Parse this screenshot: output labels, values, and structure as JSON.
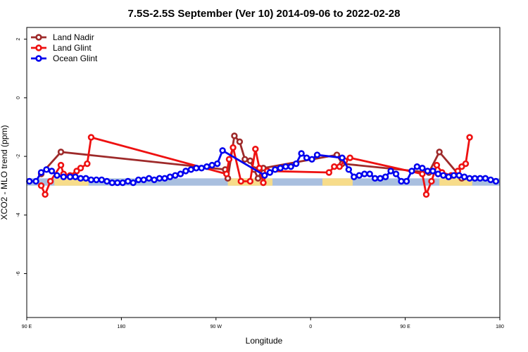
{
  "chart_data": {
    "type": "line",
    "title": "7.5S-2.5S September (Ver 10)   2014-09-06 to 2022-02-28",
    "xlabel": "Longitude",
    "ylabel": "XCO2 - MLO trend (ppm)",
    "xlim": [
      0,
      360
    ],
    "ylim": [
      -7.5,
      2.4
    ],
    "x_ticks": [
      {
        "value": 0,
        "label": "90 E"
      },
      {
        "value": 72,
        "label": "180"
      },
      {
        "value": 144,
        "label": "90 W"
      },
      {
        "value": 216,
        "label": "0"
      },
      {
        "value": 288,
        "label": "90 E"
      },
      {
        "value": 360,
        "label": "180"
      }
    ],
    "y_ticks": [
      {
        "value": 2,
        "label": "2"
      },
      {
        "value": 0,
        "label": "0"
      },
      {
        "value": -2,
        "label": "-2"
      },
      {
        "value": -4,
        "label": "-4"
      },
      {
        "value": -6,
        "label": "-6"
      }
    ],
    "legend_position": "top-left",
    "grid": false,
    "land_mask": {
      "y_range": [
        -3.0,
        -2.75
      ],
      "ocean_color": "#a9bfdf",
      "land_color": "#f7dc8a",
      "land_segments": [
        [
          21,
          47
        ],
        [
          153,
          187
        ],
        [
          225,
          248
        ],
        [
          314,
          339
        ]
      ]
    },
    "series": [
      {
        "name": "Land Nadir",
        "color": "#9e2a2a",
        "points": [
          [
            11,
            -2.6
          ],
          [
            26,
            -1.85
          ],
          [
            151,
            -2.45
          ],
          [
            153,
            -2.75
          ],
          [
            158,
            -1.3
          ],
          [
            162,
            -1.5
          ],
          [
            166,
            -2.1
          ],
          [
            170,
            -2.15
          ],
          [
            173,
            -2.45
          ],
          [
            176,
            -2.75
          ],
          [
            180,
            -2.4
          ],
          [
            236,
            -1.95
          ],
          [
            240,
            -2.25
          ],
          [
            306,
            -2.55
          ],
          [
            314,
            -1.85
          ],
          [
            331,
            -2.75
          ]
        ]
      },
      {
        "name": "Land Glint",
        "color": "#ee1111",
        "points": [
          [
            11,
            -3.0
          ],
          [
            14,
            -3.3
          ],
          [
            18,
            -2.85
          ],
          [
            26,
            -2.3
          ],
          [
            28,
            -2.6
          ],
          [
            33,
            -2.65
          ],
          [
            38,
            -2.5
          ],
          [
            41,
            -2.4
          ],
          [
            46,
            -2.25
          ],
          [
            49,
            -1.35
          ],
          [
            152,
            -2.6
          ],
          [
            154,
            -2.1
          ],
          [
            157,
            -1.7
          ],
          [
            163,
            -2.85
          ],
          [
            170,
            -2.85
          ],
          [
            174,
            -1.75
          ],
          [
            177,
            -2.4
          ],
          [
            180,
            -2.9
          ],
          [
            183,
            -2.5
          ],
          [
            230,
            -2.55
          ],
          [
            234,
            -2.35
          ],
          [
            238,
            -2.35
          ],
          [
            242,
            -2.15
          ],
          [
            246,
            -2.05
          ],
          [
            301,
            -2.6
          ],
          [
            304,
            -3.3
          ],
          [
            308,
            -2.85
          ],
          [
            312,
            -2.3
          ],
          [
            316,
            -2.55
          ],
          [
            323,
            -2.65
          ],
          [
            328,
            -2.5
          ],
          [
            331,
            -2.35
          ],
          [
            334,
            -2.25
          ],
          [
            337,
            -1.35
          ]
        ]
      },
      {
        "name": "Ocean Glint",
        "color": "#0000ee",
        "points": [
          [
            2,
            -2.85
          ],
          [
            7,
            -2.85
          ],
          [
            11,
            -2.55
          ],
          [
            15,
            -2.45
          ],
          [
            19,
            -2.5
          ],
          [
            23,
            -2.65
          ],
          [
            28,
            -2.7
          ],
          [
            33,
            -2.7
          ],
          [
            37,
            -2.7
          ],
          [
            41,
            -2.75
          ],
          [
            45,
            -2.75
          ],
          [
            49,
            -2.8
          ],
          [
            53,
            -2.8
          ],
          [
            57,
            -2.8
          ],
          [
            61,
            -2.85
          ],
          [
            65,
            -2.9
          ],
          [
            69,
            -2.9
          ],
          [
            73,
            -2.9
          ],
          [
            77,
            -2.85
          ],
          [
            81,
            -2.9
          ],
          [
            85,
            -2.8
          ],
          [
            89,
            -2.8
          ],
          [
            93,
            -2.75
          ],
          [
            97,
            -2.8
          ],
          [
            101,
            -2.75
          ],
          [
            105,
            -2.75
          ],
          [
            109,
            -2.7
          ],
          [
            113,
            -2.65
          ],
          [
            117,
            -2.6
          ],
          [
            121,
            -2.5
          ],
          [
            125,
            -2.45
          ],
          [
            129,
            -2.4
          ],
          [
            133,
            -2.4
          ],
          [
            137,
            -2.35
          ],
          [
            141,
            -2.3
          ],
          [
            145,
            -2.25
          ],
          [
            149,
            -1.8
          ],
          [
            181,
            -2.65
          ],
          [
            185,
            -2.55
          ],
          [
            189,
            -2.45
          ],
          [
            193,
            -2.4
          ],
          [
            197,
            -2.35
          ],
          [
            201,
            -2.35
          ],
          [
            205,
            -2.25
          ],
          [
            209,
            -1.9
          ],
          [
            213,
            -2.05
          ],
          [
            217,
            -2.1
          ],
          [
            221,
            -1.95
          ],
          [
            240,
            -2.05
          ],
          [
            245,
            -2.45
          ],
          [
            249,
            -2.7
          ],
          [
            253,
            -2.65
          ],
          [
            257,
            -2.6
          ],
          [
            261,
            -2.6
          ],
          [
            265,
            -2.75
          ],
          [
            269,
            -2.75
          ],
          [
            273,
            -2.7
          ],
          [
            277,
            -2.5
          ],
          [
            281,
            -2.6
          ],
          [
            285,
            -2.85
          ],
          [
            289,
            -2.85
          ],
          [
            293,
            -2.5
          ],
          [
            297,
            -2.35
          ],
          [
            301,
            -2.4
          ],
          [
            305,
            -2.5
          ],
          [
            309,
            -2.5
          ],
          [
            313,
            -2.6
          ],
          [
            317,
            -2.65
          ],
          [
            321,
            -2.7
          ],
          [
            325,
            -2.65
          ],
          [
            329,
            -2.65
          ],
          [
            333,
            -2.7
          ],
          [
            337,
            -2.75
          ],
          [
            341,
            -2.75
          ],
          [
            345,
            -2.75
          ],
          [
            349,
            -2.75
          ],
          [
            353,
            -2.8
          ],
          [
            357,
            -2.85
          ]
        ]
      }
    ]
  }
}
